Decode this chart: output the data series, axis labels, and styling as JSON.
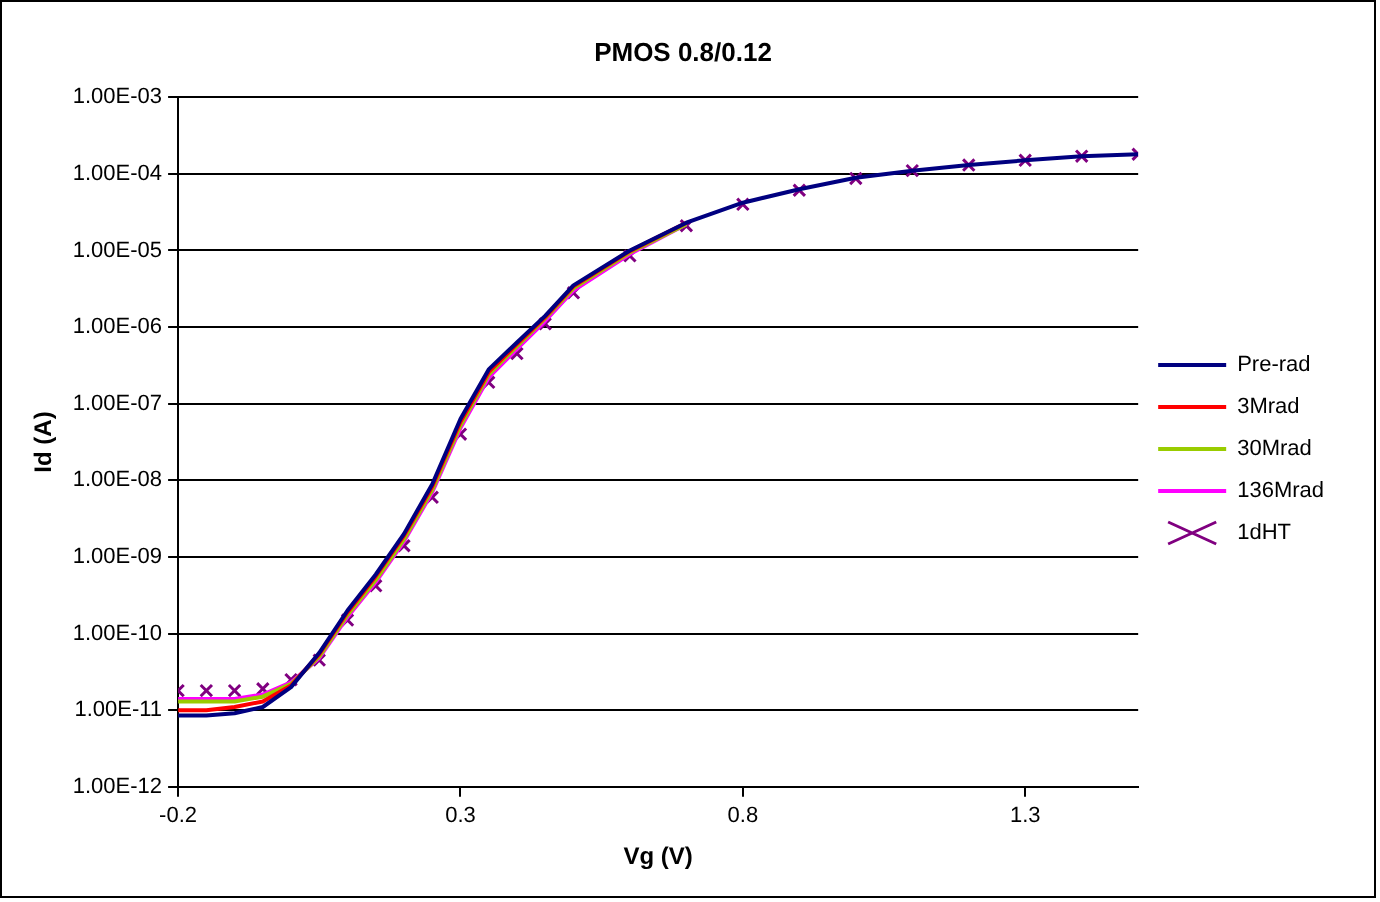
{
  "chart_data": {
    "type": "line",
    "title": "PMOS 0.8/0.12",
    "xlabel": "Vg (V)",
    "ylabel": "Id (A)",
    "x": [
      -0.2,
      -0.15,
      -0.1,
      -0.05,
      0,
      0.05,
      0.1,
      0.15,
      0.2,
      0.25,
      0.3,
      0.35,
      0.4,
      0.45,
      0.5,
      0.6,
      0.7,
      0.8,
      0.9,
      1.0,
      1.1,
      1.2,
      1.3,
      1.4,
      1.5
    ],
    "series": [
      {
        "name": "Pre-rad",
        "color": "#000080",
        "values": [
          8.5e-12,
          8.5e-12,
          9.1e-12,
          1.1e-11,
          2e-11,
          5.6e-11,
          2e-10,
          5.9e-10,
          2e-09,
          8.9e-09,
          6.3e-08,
          2.8e-07,
          6.3e-07,
          1.4e-06,
          3.5e-06,
          1e-05,
          2.3e-05,
          4.2e-05,
          6.3e-05,
          8.9e-05,
          0.00011,
          0.00013,
          0.00015,
          0.00017,
          0.00018
        ]
      },
      {
        "name": "3Mrad",
        "color": "#ff0000",
        "values": [
          1e-11,
          1e-11,
          1.1e-11,
          1.3e-11,
          2.1e-11,
          5.4e-11,
          1.9e-10,
          5.6e-10,
          1.9e-09,
          8.3e-09,
          5.8e-08,
          2.6e-07,
          6e-07,
          1.35e-06,
          3.4e-06,
          9.8e-06,
          2.3e-05,
          null,
          null,
          null,
          null,
          null,
          null,
          null,
          null
        ]
      },
      {
        "name": "30Mrad",
        "color": "#99cc00",
        "values": [
          1.3e-11,
          1.3e-11,
          1.3e-11,
          1.5e-11,
          2.2e-11,
          5e-11,
          1.75e-10,
          5e-10,
          1.7e-09,
          7.5e-09,
          5.2e-08,
          2.4e-07,
          5.6e-07,
          1.3e-06,
          3.2e-06,
          9.4e-06,
          2.2e-05,
          null,
          null,
          null,
          null,
          null,
          null,
          null,
          null
        ]
      },
      {
        "name": "136Mrad",
        "color": "#ff00ff",
        "values": [
          1.4e-11,
          1.4e-11,
          1.4e-11,
          1.6e-11,
          2.3e-11,
          4.8e-11,
          1.65e-10,
          4.7e-10,
          1.6e-09,
          7e-09,
          4.8e-08,
          2.2e-07,
          5.2e-07,
          1.2e-06,
          3e-06,
          9e-06,
          2.2e-05,
          null,
          null,
          null,
          null,
          null,
          null,
          null,
          null
        ]
      },
      {
        "name": "1dHT",
        "color": "#800080",
        "type": "scatter",
        "marker": "cross",
        "values": [
          1.8e-11,
          1.8e-11,
          1.8e-11,
          1.9e-11,
          2.5e-11,
          4.5e-11,
          1.5e-10,
          4.2e-10,
          1.4e-09,
          6e-09,
          4e-08,
          1.9e-07,
          4.5e-07,
          1.1e-06,
          2.8e-06,
          8.5e-06,
          2.1e-05,
          4e-05,
          6.1e-05,
          8.7e-05,
          0.00011,
          0.00013,
          0.00015,
          0.00017,
          0.00018
        ]
      }
    ],
    "log": "y",
    "xlim": [
      -0.2,
      1.5
    ],
    "xticks": [
      -0.2,
      0.3,
      0.8,
      1.3
    ],
    "ylim": [
      1e-12,
      0.001
    ],
    "yticks": [
      {
        "value": 1e-12,
        "label": "1.00E-12"
      },
      {
        "value": 1e-11,
        "label": "1.00E-11"
      },
      {
        "value": 1e-10,
        "label": "1.00E-10"
      },
      {
        "value": 1e-09,
        "label": "1.00E-09"
      },
      {
        "value": 1e-08,
        "label": "1.00E-08"
      },
      {
        "value": 1e-07,
        "label": "1.00E-07"
      },
      {
        "value": 1e-06,
        "label": "1.00E-06"
      },
      {
        "value": 1e-05,
        "label": "1.00E-05"
      },
      {
        "value": 0.0001,
        "label": "1.00E-04"
      },
      {
        "value": 0.001,
        "label": "1.00E-03"
      }
    ],
    "grid": "y",
    "legend": "right",
    "marker": "none",
    "line_style": "solid"
  }
}
